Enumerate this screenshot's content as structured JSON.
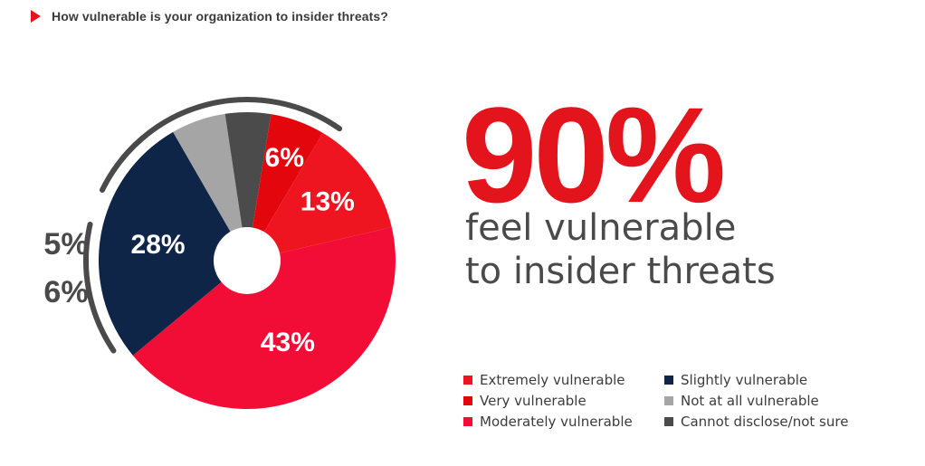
{
  "header": {
    "question": "How vulnerable is your organization to insider threats?"
  },
  "headline": {
    "percent": "90%",
    "line1": "feel vulnerable",
    "line2": "to insider threats"
  },
  "colors": {
    "accent": "#e3141c",
    "ring": "#4a4a4a"
  },
  "chart_data": {
    "type": "pie",
    "slices": [
      {
        "name": "Moderately vulnerable",
        "value": 43,
        "label": "43%",
        "color": "#f20d37"
      },
      {
        "name": "Slightly vulnerable",
        "value": 28,
        "label": "28%",
        "color": "#0f2547"
      },
      {
        "name": "Not at all vulnerable",
        "value": 6,
        "label": "6%",
        "color": "#a5a5a5"
      },
      {
        "name": "Cannot disclose/not sure",
        "value": 5,
        "label": "5%",
        "color": "#4b4b4b"
      },
      {
        "name": "Very vulnerable",
        "value": 6,
        "label": "6%",
        "color": "#e3060d"
      },
      {
        "name": "Extremely vulnerable",
        "value": 13,
        "label": "13%",
        "color": "#ee1520"
      }
    ],
    "legend": [
      {
        "label": "Extremely vulnerable",
        "color": "#ee1520"
      },
      {
        "label": "Slightly vulnerable",
        "color": "#0f2547"
      },
      {
        "label": "Very vulnerable",
        "color": "#e3060d"
      },
      {
        "label": "Not at all vulnerable",
        "color": "#a5a5a5"
      },
      {
        "label": "Moderately vulnerable",
        "color": "#f20d37"
      },
      {
        "label": "Cannot disclose/not sure",
        "color": "#4b4b4b"
      }
    ]
  }
}
